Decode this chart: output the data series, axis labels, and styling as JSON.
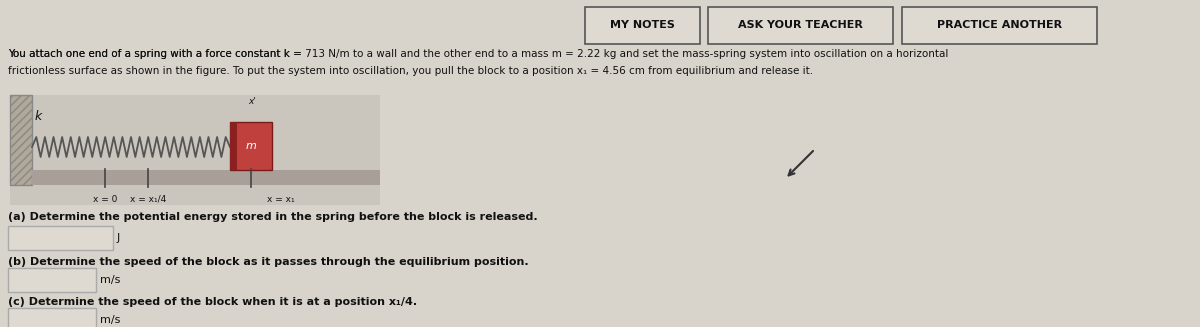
{
  "bg_color": "#d8d4cc",
  "title_text": "ASK YOUR TEACHER",
  "practice_text": "PRACTICE ANOTHER",
  "mynotes_text": "MY NOTES",
  "problem_line1a": "You attach one end of a spring with a force constant k = ",
  "problem_line1b": "713",
  "problem_line1c": " N/m to a wall and the other end to a mass m = ",
  "problem_line1d": "2.22",
  "problem_line1e": " kg and set the mass-spring system into oscillation on a horizontal",
  "problem_line2a": "frictionless surface as shown in the figure. To put the system into oscillation, you pull the block to a position x",
  "problem_line2b": "1",
  "problem_line2c": " = ",
  "problem_line2d": "4.56",
  "problem_line2e": " cm from equilibrium and release it.",
  "qa_text": "(a) Determine the potential energy stored in the spring before the block is released.",
  "qa_unit": "J",
  "qb_text": "(b) Determine the speed of the block as it passes through the equilibrium position.",
  "qb_unit": "m/s",
  "qc_text": "(c) Determine the speed of the block when it is at a position x",
  "qc_text2": "/4.",
  "qc_unit": "m/s",
  "spring_label": "k",
  "mass_label": "m",
  "wall_color": "#b0a898",
  "block_face_color": "#c0403d",
  "surface_color": "#b8b0a0",
  "input_box_color": "#dedad2",
  "button_color": "#dedad2",
  "button_border": "#555555",
  "highlight_color": "#cc2200",
  "text_color": "#111111",
  "label_color": "#333333",
  "fig_bg": "#cac6be"
}
